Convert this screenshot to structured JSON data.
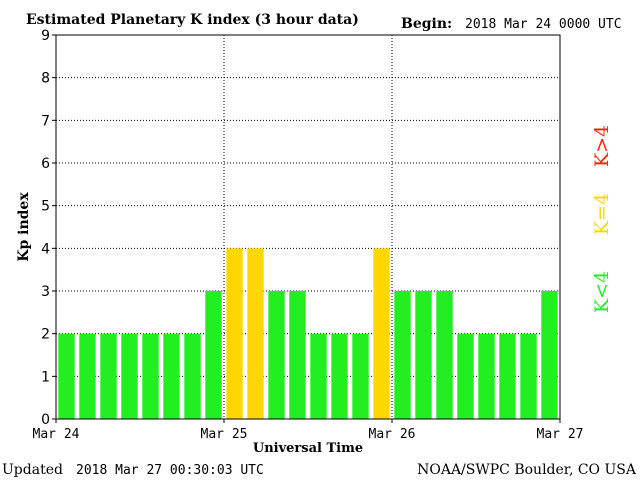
{
  "chart_data": {
    "type": "bar",
    "title": "Estimated Planetary K index (3 hour data)",
    "begin_label": "Begin:",
    "begin_value": "2018 Mar 24 0000 UTC",
    "ylabel": "Kp index",
    "xlabel": "Universal Time",
    "ylim": [
      0,
      9
    ],
    "yticks": [
      "0",
      "1",
      "2",
      "3",
      "4",
      "5",
      "6",
      "7",
      "8",
      "9"
    ],
    "xticks": [
      "Mar 24",
      "Mar 25",
      "Mar 26",
      "Mar 27"
    ],
    "grid": true,
    "values": [
      2,
      2,
      2,
      2,
      2,
      2,
      2,
      3,
      4,
      4,
      3,
      3,
      2,
      2,
      2,
      4,
      3,
      3,
      3,
      2,
      2,
      2,
      2,
      3
    ],
    "legend": [
      {
        "label": "K<4",
        "color": "#22ee22"
      },
      {
        "label": "K=4",
        "color": "#ffd700"
      },
      {
        "label": "K>4",
        "color": "#ff2200"
      }
    ],
    "colors": {
      "below": "#22ee22",
      "equal": "#ffd700",
      "above": "#ff2200"
    }
  },
  "footer": {
    "updated_label": "Updated",
    "updated_value": "2018 Mar 27 00:30:03 UTC",
    "source": "NOAA/SWPC Boulder, CO USA"
  }
}
